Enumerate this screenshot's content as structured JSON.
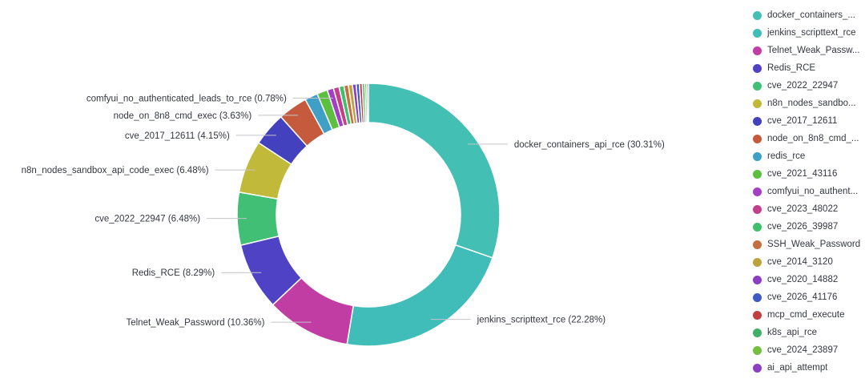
{
  "chart_data": {
    "type": "pie",
    "title": "",
    "donut": true,
    "legend_position": "right",
    "slices": [
      {
        "name": "docker_containers_api_rce",
        "label": "docker_containers_api_rce (30.31%)",
        "legend": "docker_containers_...",
        "value": 30.31,
        "color": "#43bfb3"
      },
      {
        "name": "jenkins_scripttext_rce",
        "label": "jenkins_scripttext_rce (22.28%)",
        "legend": "jenkins_scripttext_rce",
        "value": 22.28,
        "color": "#40bdb8"
      },
      {
        "name": "Telnet_Weak_Password",
        "label": "Telnet_Weak_Password (10.36%)",
        "legend": "Telnet_Weak_Passw...",
        "value": 10.36,
        "color": "#c23da3"
      },
      {
        "name": "Redis_RCE",
        "label": "Redis_RCE (8.29%)",
        "legend": "Redis_RCE",
        "value": 8.29,
        "color": "#5042c4"
      },
      {
        "name": "cve_2022_22947",
        "label": "cve_2022_22947 (6.48%)",
        "legend": "cve_2022_22947",
        "value": 6.48,
        "color": "#41bf74"
      },
      {
        "name": "n8n_nodes_sandbox_api_code_exec",
        "label": "n8n_nodes_sandbox_api_code_exec (6.48%)",
        "legend": "n8n_nodes_sandbo...",
        "value": 6.48,
        "color": "#c1b93a"
      },
      {
        "name": "cve_2017_12611",
        "label": "cve_2017_12611 (4.15%)",
        "legend": "cve_2017_12611",
        "value": 4.15,
        "color": "#4441bf"
      },
      {
        "name": "node_on_8n8_cmd_exec",
        "label": "node_on_8n8_cmd_exec (3.63%)",
        "legend": "node_on_8n8_cmd_...",
        "value": 3.63,
        "color": "#c65a3d"
      },
      {
        "name": "redis_rce",
        "label": "",
        "legend": "redis_rce",
        "value": 1.6,
        "color": "#3f9fc4"
      },
      {
        "name": "cve_2021_43116",
        "label": "",
        "legend": "cve_2021_43116",
        "value": 1.3,
        "color": "#5cbf40"
      },
      {
        "name": "comfyui_no_authenticated_leads_to_rce",
        "label": "comfyui_no_authenticated_leads_to_rce (0.78%)",
        "legend": "comfyui_no_authent...",
        "value": 0.78,
        "color": "#a23fc2"
      },
      {
        "name": "cve_2023_48022",
        "label": "",
        "legend": "cve_2023_48022",
        "value": 0.7,
        "color": "#c23f8c"
      },
      {
        "name": "cve_2026_39987",
        "label": "",
        "legend": "cve_2026_39987",
        "value": 0.6,
        "color": "#3fbf6a"
      },
      {
        "name": "SSH_Weak_Password",
        "label": "",
        "legend": "SSH_Weak_Password",
        "value": 0.55,
        "color": "#c2703f"
      },
      {
        "name": "cve_2014_3120",
        "label": "",
        "legend": "cve_2014_3120",
        "value": 0.5,
        "color": "#bfa23f"
      },
      {
        "name": "cve_2020_14882",
        "label": "",
        "legend": "cve_2020_14882",
        "value": 0.45,
        "color": "#8a3fc2"
      },
      {
        "name": "cve_2026_41176",
        "label": "",
        "legend": "cve_2026_41176",
        "value": 0.4,
        "color": "#3f5ac2"
      },
      {
        "name": "mcp_cmd_execute",
        "label": "",
        "legend": "mcp_cmd_execute",
        "value": 0.35,
        "color": "#c23f3f"
      },
      {
        "name": "k8s_api_rce",
        "label": "",
        "legend": "k8s_api_rce",
        "value": 0.3,
        "color": "#3fb065"
      },
      {
        "name": "cve_2024_23897",
        "label": "",
        "legend": "cve_2024_23897",
        "value": 0.25,
        "color": "#74bf3f"
      },
      {
        "name": "ai_api_attempt",
        "label": "",
        "legend": "ai_api_attempt",
        "value": 0.2,
        "color": "#8c3fc2"
      }
    ]
  }
}
